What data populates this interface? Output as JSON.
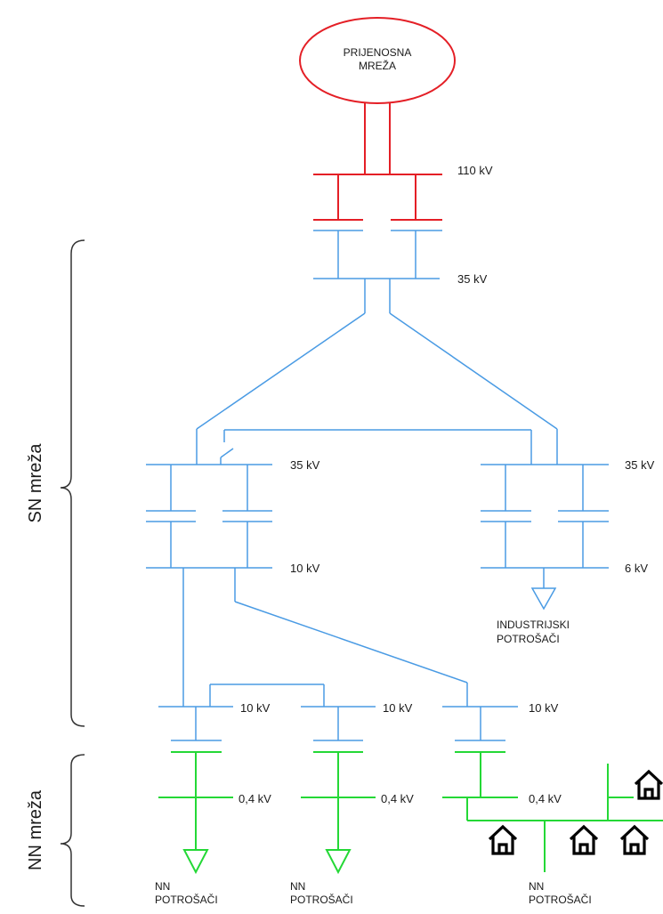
{
  "source_node": {
    "line1": "PRIJENOSNA",
    "line2": "MREŽA"
  },
  "voltage_labels": {
    "v110": "110 kV",
    "v35_top": "35 kV",
    "v35_left": "35 kV",
    "v35_right": "35 kV",
    "v10_left": "10 kV",
    "v6_right": "6 kV",
    "v10_sub1": "10 kV",
    "v10_sub2": "10 kV",
    "v10_sub3": "10 kV",
    "v04_sub1": "0,4 kV",
    "v04_sub2": "0,4 kV",
    "v04_sub3": "0,4 kV"
  },
  "consumers": {
    "industrial": {
      "line1": "INDUSTRIJSKI",
      "line2": "POTROŠAČI"
    },
    "nn1": {
      "line1": "NN",
      "line2": "POTROŠAČI"
    },
    "nn2": {
      "line1": "NN",
      "line2": "POTROŠAČI"
    },
    "nn3": {
      "line1": "NN",
      "line2": "POTROŠAČI"
    }
  },
  "side_labels": {
    "sn": "SN mreža",
    "nn": "NN mreža"
  },
  "colors": {
    "transmission": "#e41f26",
    "medium_voltage": "#4a9be4",
    "low_voltage": "#24d836"
  },
  "icons": [
    "house-icon",
    "load-triangle-icon"
  ]
}
